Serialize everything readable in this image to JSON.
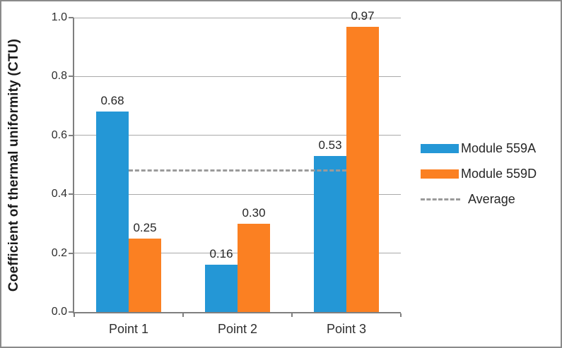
{
  "chart_data": {
    "type": "bar",
    "title": "",
    "xlabel": "",
    "ylabel": "Coefficient of thermal uniformity (CTU)",
    "ylim": [
      0.0,
      1.0
    ],
    "grid": true,
    "legend_position": "right",
    "categories": [
      "Point 1",
      "Point 2",
      "Point 3"
    ],
    "series": [
      {
        "name": "Module 559A",
        "color": "#2497d6",
        "values": [
          0.68,
          0.16,
          0.53
        ],
        "labels": [
          "0.68",
          "0.16",
          "0.53"
        ]
      },
      {
        "name": "Module 559D",
        "color": "#fb8022",
        "values": [
          0.25,
          0.3,
          0.97
        ],
        "labels": [
          "0.25",
          "0.30",
          "0.97"
        ]
      }
    ],
    "average_line": {
      "label": "Average",
      "value": 0.48,
      "style": "dashed",
      "color": "#9b9b9b"
    },
    "yticks": [
      0.0,
      0.2,
      0.4,
      0.6,
      0.8,
      1.0
    ],
    "ytick_labels": [
      "0.0",
      "0.2",
      "0.4",
      "0.6",
      "0.8",
      "1.0"
    ],
    "colors": {
      "gridline": "#a9a9a9",
      "axis": "#7f7f7f",
      "frame_border": "#8a8a8a",
      "text": "#262626"
    }
  }
}
